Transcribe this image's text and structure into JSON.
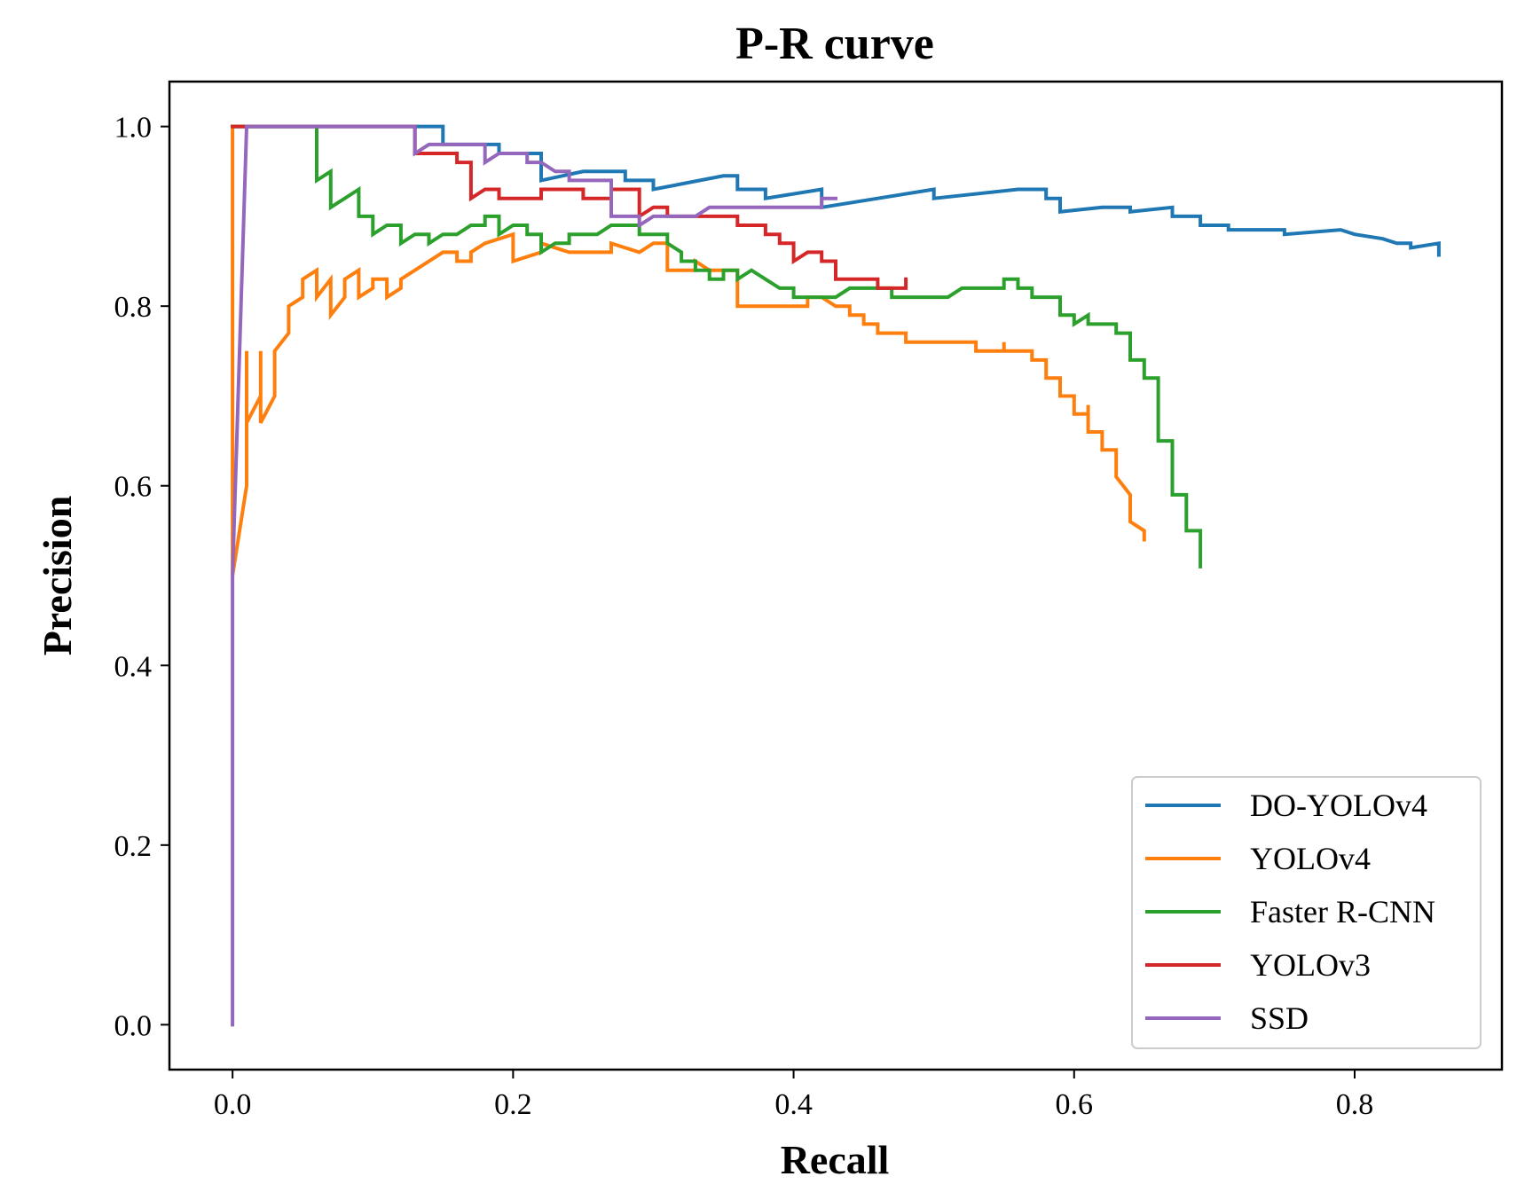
{
  "chart_data": {
    "type": "line",
    "title": "P-R curve",
    "xlabel": "Recall",
    "ylabel": "Precision",
    "xlim": [
      -0.045,
      0.905
    ],
    "ylim": [
      -0.05,
      1.05
    ],
    "xticks": [
      0.0,
      0.2,
      0.4,
      0.6,
      0.8
    ],
    "xtick_labels": [
      "0.0",
      "0.2",
      "0.4",
      "0.6",
      "0.8"
    ],
    "yticks": [
      0.0,
      0.2,
      0.4,
      0.6,
      0.8,
      1.0
    ],
    "ytick_labels": [
      "0.0",
      "0.2",
      "0.4",
      "0.6",
      "0.8",
      "1.0"
    ],
    "grid": false,
    "legend_position": "bottom-right",
    "series": [
      {
        "name": "DO-YOLOv4",
        "color": "#1f77b4",
        "points": [
          [
            0.0,
            1.0
          ],
          [
            0.15,
            1.0
          ],
          [
            0.15,
            0.98
          ],
          [
            0.19,
            0.98
          ],
          [
            0.19,
            0.97
          ],
          [
            0.22,
            0.97
          ],
          [
            0.22,
            0.94
          ],
          [
            0.25,
            0.95
          ],
          [
            0.28,
            0.95
          ],
          [
            0.28,
            0.94
          ],
          [
            0.3,
            0.94
          ],
          [
            0.3,
            0.93
          ],
          [
            0.35,
            0.945
          ],
          [
            0.36,
            0.945
          ],
          [
            0.36,
            0.93
          ],
          [
            0.38,
            0.93
          ],
          [
            0.38,
            0.92
          ],
          [
            0.42,
            0.93
          ],
          [
            0.42,
            0.91
          ],
          [
            0.5,
            0.93
          ],
          [
            0.5,
            0.92
          ],
          [
            0.56,
            0.93
          ],
          [
            0.58,
            0.93
          ],
          [
            0.58,
            0.92
          ],
          [
            0.59,
            0.92
          ],
          [
            0.59,
            0.905
          ],
          [
            0.62,
            0.91
          ],
          [
            0.64,
            0.91
          ],
          [
            0.64,
            0.905
          ],
          [
            0.67,
            0.91
          ],
          [
            0.67,
            0.9
          ],
          [
            0.69,
            0.9
          ],
          [
            0.69,
            0.89
          ],
          [
            0.71,
            0.89
          ],
          [
            0.71,
            0.885
          ],
          [
            0.75,
            0.885
          ],
          [
            0.75,
            0.88
          ],
          [
            0.79,
            0.885
          ],
          [
            0.8,
            0.88
          ],
          [
            0.82,
            0.875
          ],
          [
            0.83,
            0.87
          ],
          [
            0.84,
            0.87
          ],
          [
            0.84,
            0.865
          ],
          [
            0.86,
            0.87
          ],
          [
            0.86,
            0.857
          ]
        ]
      },
      {
        "name": "YOLOv4",
        "color": "#ff7f0e",
        "points": [
          [
            0.0,
            1.0
          ],
          [
            0.0,
            0.5
          ],
          [
            0.01,
            0.6
          ],
          [
            0.01,
            0.75
          ],
          [
            0.01,
            0.67
          ],
          [
            0.02,
            0.7
          ],
          [
            0.02,
            0.75
          ],
          [
            0.02,
            0.67
          ],
          [
            0.03,
            0.7
          ],
          [
            0.03,
            0.75
          ],
          [
            0.04,
            0.77
          ],
          [
            0.04,
            0.8
          ],
          [
            0.05,
            0.81
          ],
          [
            0.05,
            0.83
          ],
          [
            0.06,
            0.84
          ],
          [
            0.06,
            0.81
          ],
          [
            0.07,
            0.83
          ],
          [
            0.07,
            0.79
          ],
          [
            0.08,
            0.81
          ],
          [
            0.08,
            0.83
          ],
          [
            0.09,
            0.84
          ],
          [
            0.09,
            0.81
          ],
          [
            0.1,
            0.82
          ],
          [
            0.1,
            0.83
          ],
          [
            0.11,
            0.83
          ],
          [
            0.11,
            0.81
          ],
          [
            0.12,
            0.82
          ],
          [
            0.12,
            0.83
          ],
          [
            0.15,
            0.86
          ],
          [
            0.16,
            0.86
          ],
          [
            0.16,
            0.85
          ],
          [
            0.17,
            0.85
          ],
          [
            0.17,
            0.86
          ],
          [
            0.18,
            0.87
          ],
          [
            0.2,
            0.88
          ],
          [
            0.2,
            0.85
          ],
          [
            0.22,
            0.86
          ],
          [
            0.22,
            0.87
          ],
          [
            0.24,
            0.86
          ],
          [
            0.27,
            0.86
          ],
          [
            0.27,
            0.87
          ],
          [
            0.29,
            0.86
          ],
          [
            0.3,
            0.87
          ],
          [
            0.31,
            0.87
          ],
          [
            0.31,
            0.84
          ],
          [
            0.33,
            0.84
          ],
          [
            0.33,
            0.85
          ],
          [
            0.34,
            0.84
          ],
          [
            0.36,
            0.84
          ],
          [
            0.36,
            0.8
          ],
          [
            0.41,
            0.8
          ],
          [
            0.41,
            0.81
          ],
          [
            0.42,
            0.81
          ],
          [
            0.43,
            0.8
          ],
          [
            0.44,
            0.8
          ],
          [
            0.44,
            0.79
          ],
          [
            0.45,
            0.79
          ],
          [
            0.45,
            0.78
          ],
          [
            0.46,
            0.78
          ],
          [
            0.46,
            0.77
          ],
          [
            0.48,
            0.77
          ],
          [
            0.48,
            0.76
          ],
          [
            0.5,
            0.76
          ],
          [
            0.53,
            0.76
          ],
          [
            0.53,
            0.75
          ],
          [
            0.55,
            0.75
          ],
          [
            0.55,
            0.76
          ],
          [
            0.55,
            0.75
          ],
          [
            0.57,
            0.75
          ],
          [
            0.57,
            0.74
          ],
          [
            0.58,
            0.74
          ],
          [
            0.58,
            0.72
          ],
          [
            0.59,
            0.72
          ],
          [
            0.59,
            0.7
          ],
          [
            0.6,
            0.7
          ],
          [
            0.6,
            0.68
          ],
          [
            0.61,
            0.68
          ],
          [
            0.61,
            0.69
          ],
          [
            0.61,
            0.66
          ],
          [
            0.62,
            0.66
          ],
          [
            0.62,
            0.64
          ],
          [
            0.63,
            0.64
          ],
          [
            0.63,
            0.61
          ],
          [
            0.64,
            0.59
          ],
          [
            0.64,
            0.56
          ],
          [
            0.65,
            0.55
          ],
          [
            0.65,
            0.54
          ]
        ]
      },
      {
        "name": "Faster R-CNN",
        "color": "#2ca02c",
        "points": [
          [
            0.0,
            1.0
          ],
          [
            0.06,
            1.0
          ],
          [
            0.06,
            0.94
          ],
          [
            0.07,
            0.95
          ],
          [
            0.07,
            0.91
          ],
          [
            0.08,
            0.92
          ],
          [
            0.09,
            0.93
          ],
          [
            0.09,
            0.9
          ],
          [
            0.1,
            0.9
          ],
          [
            0.1,
            0.88
          ],
          [
            0.11,
            0.89
          ],
          [
            0.12,
            0.89
          ],
          [
            0.12,
            0.87
          ],
          [
            0.13,
            0.88
          ],
          [
            0.14,
            0.88
          ],
          [
            0.14,
            0.87
          ],
          [
            0.15,
            0.88
          ],
          [
            0.16,
            0.88
          ],
          [
            0.17,
            0.89
          ],
          [
            0.18,
            0.89
          ],
          [
            0.18,
            0.9
          ],
          [
            0.19,
            0.9
          ],
          [
            0.19,
            0.88
          ],
          [
            0.2,
            0.89
          ],
          [
            0.21,
            0.89
          ],
          [
            0.21,
            0.88
          ],
          [
            0.22,
            0.88
          ],
          [
            0.22,
            0.86
          ],
          [
            0.23,
            0.87
          ],
          [
            0.24,
            0.87
          ],
          [
            0.24,
            0.88
          ],
          [
            0.26,
            0.88
          ],
          [
            0.27,
            0.89
          ],
          [
            0.29,
            0.89
          ],
          [
            0.29,
            0.88
          ],
          [
            0.31,
            0.88
          ],
          [
            0.31,
            0.87
          ],
          [
            0.32,
            0.86
          ],
          [
            0.32,
            0.85
          ],
          [
            0.33,
            0.85
          ],
          [
            0.33,
            0.84
          ],
          [
            0.34,
            0.84
          ],
          [
            0.34,
            0.83
          ],
          [
            0.35,
            0.83
          ],
          [
            0.35,
            0.84
          ],
          [
            0.36,
            0.84
          ],
          [
            0.36,
            0.83
          ],
          [
            0.37,
            0.84
          ],
          [
            0.38,
            0.83
          ],
          [
            0.39,
            0.82
          ],
          [
            0.4,
            0.82
          ],
          [
            0.4,
            0.81
          ],
          [
            0.42,
            0.81
          ],
          [
            0.43,
            0.81
          ],
          [
            0.44,
            0.82
          ],
          [
            0.47,
            0.82
          ],
          [
            0.47,
            0.81
          ],
          [
            0.51,
            0.81
          ],
          [
            0.52,
            0.82
          ],
          [
            0.55,
            0.82
          ],
          [
            0.55,
            0.83
          ],
          [
            0.56,
            0.83
          ],
          [
            0.56,
            0.82
          ],
          [
            0.57,
            0.82
          ],
          [
            0.57,
            0.81
          ],
          [
            0.59,
            0.81
          ],
          [
            0.59,
            0.79
          ],
          [
            0.6,
            0.79
          ],
          [
            0.6,
            0.78
          ],
          [
            0.61,
            0.79
          ],
          [
            0.61,
            0.78
          ],
          [
            0.63,
            0.78
          ],
          [
            0.63,
            0.77
          ],
          [
            0.64,
            0.77
          ],
          [
            0.64,
            0.74
          ],
          [
            0.65,
            0.74
          ],
          [
            0.65,
            0.72
          ],
          [
            0.66,
            0.72
          ],
          [
            0.66,
            0.65
          ],
          [
            0.67,
            0.65
          ],
          [
            0.67,
            0.59
          ],
          [
            0.68,
            0.59
          ],
          [
            0.68,
            0.55
          ],
          [
            0.69,
            0.55
          ],
          [
            0.69,
            0.51
          ]
        ]
      },
      {
        "name": "YOLOv3",
        "color": "#d62728",
        "points": [
          [
            0.0,
            1.0
          ],
          [
            0.13,
            1.0
          ],
          [
            0.13,
            0.97
          ],
          [
            0.16,
            0.97
          ],
          [
            0.16,
            0.96
          ],
          [
            0.17,
            0.96
          ],
          [
            0.17,
            0.92
          ],
          [
            0.18,
            0.93
          ],
          [
            0.19,
            0.93
          ],
          [
            0.19,
            0.92
          ],
          [
            0.22,
            0.92
          ],
          [
            0.22,
            0.93
          ],
          [
            0.25,
            0.93
          ],
          [
            0.25,
            0.92
          ],
          [
            0.27,
            0.92
          ],
          [
            0.27,
            0.93
          ],
          [
            0.29,
            0.93
          ],
          [
            0.29,
            0.9
          ],
          [
            0.3,
            0.91
          ],
          [
            0.31,
            0.91
          ],
          [
            0.31,
            0.9
          ],
          [
            0.36,
            0.9
          ],
          [
            0.36,
            0.89
          ],
          [
            0.38,
            0.89
          ],
          [
            0.38,
            0.88
          ],
          [
            0.39,
            0.88
          ],
          [
            0.39,
            0.87
          ],
          [
            0.4,
            0.87
          ],
          [
            0.4,
            0.85
          ],
          [
            0.41,
            0.86
          ],
          [
            0.42,
            0.86
          ],
          [
            0.42,
            0.85
          ],
          [
            0.43,
            0.85
          ],
          [
            0.43,
            0.83
          ],
          [
            0.46,
            0.83
          ],
          [
            0.46,
            0.82
          ],
          [
            0.48,
            0.82
          ],
          [
            0.48,
            0.83
          ]
        ]
      },
      {
        "name": "SSD",
        "color": "#9467bd",
        "points": [
          [
            0.0,
            0.0
          ],
          [
            0.0,
            0.5
          ],
          [
            0.01,
            1.0
          ],
          [
            0.13,
            1.0
          ],
          [
            0.13,
            0.97
          ],
          [
            0.14,
            0.98
          ],
          [
            0.16,
            0.98
          ],
          [
            0.18,
            0.98
          ],
          [
            0.18,
            0.96
          ],
          [
            0.19,
            0.97
          ],
          [
            0.2,
            0.97
          ],
          [
            0.21,
            0.97
          ],
          [
            0.21,
            0.96
          ],
          [
            0.22,
            0.96
          ],
          [
            0.23,
            0.95
          ],
          [
            0.24,
            0.95
          ],
          [
            0.24,
            0.94
          ],
          [
            0.26,
            0.94
          ],
          [
            0.27,
            0.94
          ],
          [
            0.27,
            0.9
          ],
          [
            0.29,
            0.9
          ],
          [
            0.29,
            0.89
          ],
          [
            0.3,
            0.9
          ],
          [
            0.33,
            0.9
          ],
          [
            0.34,
            0.91
          ],
          [
            0.39,
            0.91
          ],
          [
            0.42,
            0.91
          ],
          [
            0.42,
            0.92
          ],
          [
            0.43,
            0.92
          ]
        ]
      }
    ]
  }
}
